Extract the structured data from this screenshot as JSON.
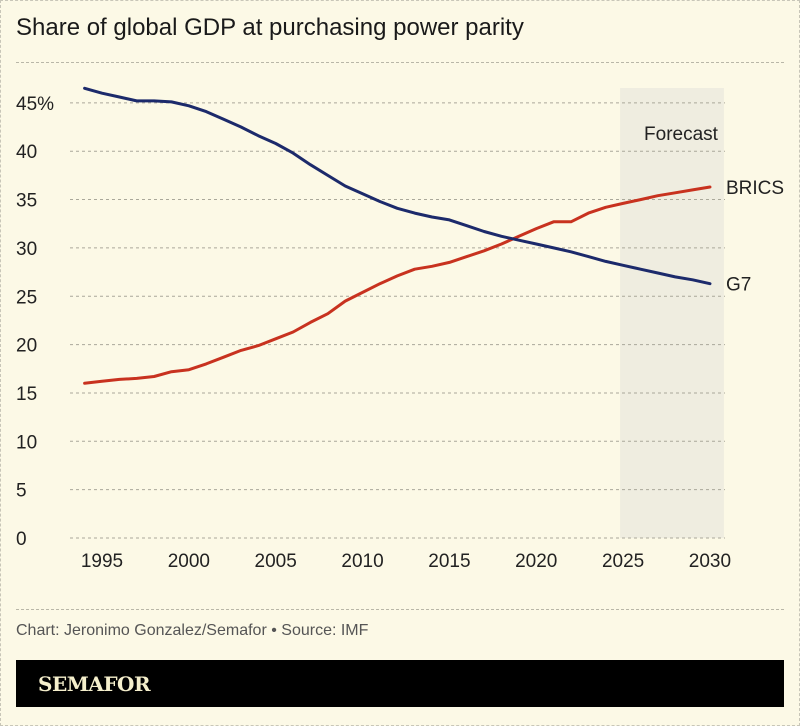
{
  "title": "Share of global GDP at purchasing power parity",
  "source": "Chart: Jeronimo Gonzalez/Semafor • Source: IMF",
  "brand": "SEMAFOR",
  "chart_data": {
    "type": "line",
    "title": "Share of global GDP at purchasing power parity",
    "xlabel": "",
    "ylabel": "",
    "x": [
      1994,
      1995,
      1996,
      1997,
      1998,
      1999,
      2000,
      2001,
      2002,
      2003,
      2004,
      2005,
      2006,
      2007,
      2008,
      2009,
      2010,
      2011,
      2012,
      2013,
      2014,
      2015,
      2016,
      2017,
      2018,
      2019,
      2020,
      2021,
      2022,
      2023,
      2024,
      2025,
      2026,
      2027,
      2028,
      2029,
      2030
    ],
    "series": [
      {
        "name": "BRICS",
        "color": "#c8321f",
        "values": [
          16.0,
          16.2,
          16.4,
          16.5,
          16.7,
          17.2,
          17.4,
          18.0,
          18.7,
          19.4,
          19.9,
          20.6,
          21.3,
          22.3,
          23.2,
          24.5,
          25.4,
          26.3,
          27.1,
          27.8,
          28.1,
          28.5,
          29.1,
          29.7,
          30.4,
          31.2,
          32.0,
          32.7,
          32.7,
          33.6,
          34.2,
          34.6,
          35.0,
          35.4,
          35.7,
          36.0,
          36.3
        ]
      },
      {
        "name": "G7",
        "color": "#1c2a6b",
        "values": [
          46.5,
          46.0,
          45.6,
          45.2,
          45.2,
          45.1,
          44.7,
          44.1,
          43.3,
          42.5,
          41.6,
          40.8,
          39.8,
          38.6,
          37.5,
          36.4,
          35.6,
          34.8,
          34.1,
          33.6,
          33.2,
          32.9,
          32.3,
          31.7,
          31.2,
          30.8,
          30.4,
          30.0,
          29.6,
          29.1,
          28.6,
          28.2,
          27.8,
          27.4,
          27.0,
          26.7,
          26.3
        ]
      }
    ],
    "ylim": [
      0,
      47
    ],
    "yticks": [
      0,
      5,
      10,
      15,
      20,
      25,
      30,
      35,
      40,
      45
    ],
    "ytick_labels": [
      "0",
      "5",
      "10",
      "15",
      "20",
      "25",
      "30",
      "35",
      "40",
      "45%"
    ],
    "xticks": [
      1995,
      2000,
      2005,
      2010,
      2015,
      2020,
      2025,
      2030
    ],
    "xtick_labels": [
      "1995",
      "2000",
      "2005",
      "2010",
      "2015",
      "2020",
      "2025",
      "2030"
    ],
    "forecast": {
      "label": "Forecast",
      "start": 2025,
      "end": 2030,
      "color": "#efede0"
    },
    "grid": true,
    "legend": "direct labels at line ends"
  }
}
